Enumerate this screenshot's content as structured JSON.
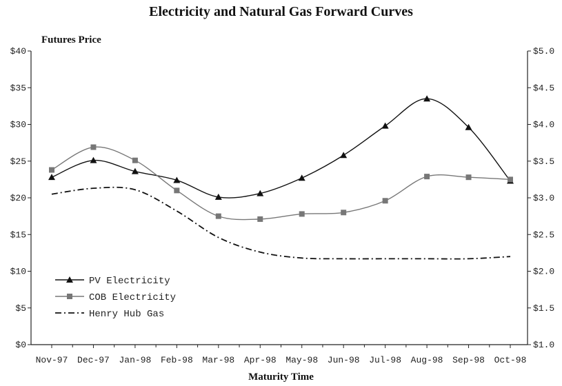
{
  "chart_data": {
    "type": "line",
    "title": "Electricity and Natural Gas Forward Curves",
    "ylabel": "Futures Price",
    "xlabel": "Maturity Time",
    "categories": [
      "Nov-97",
      "Dec-97",
      "Jan-98",
      "Feb-98",
      "Mar-98",
      "Apr-98",
      "May-98",
      "Jun-98",
      "Jul-98",
      "Aug-98",
      "Sep-98",
      "Oct-98"
    ],
    "ylim": [
      0,
      40
    ],
    "yticks": [
      "$0",
      "$5",
      "$10",
      "$15",
      "$20",
      "$25",
      "$30",
      "$35",
      "$40"
    ],
    "y2lim": [
      1.0,
      5.0
    ],
    "y2ticks": [
      "$1.0",
      "$1.5",
      "$2.0",
      "$2.5",
      "$3.0",
      "$3.5",
      "$4.0",
      "$4.5",
      "$5.0"
    ],
    "grid": false,
    "legend_position": "bottom-left",
    "series": [
      {
        "name": "PV Electricity",
        "axis": "left",
        "marker": "triangle",
        "color": "#111111",
        "values": [
          22.8,
          25.1,
          23.6,
          22.4,
          20.1,
          20.6,
          22.7,
          25.8,
          29.8,
          33.5,
          29.6,
          22.3
        ]
      },
      {
        "name": "COB Electricity",
        "axis": "left",
        "marker": "square",
        "color": "#777777",
        "values": [
          23.8,
          26.9,
          25.1,
          21.0,
          17.5,
          17.1,
          17.8,
          18.0,
          19.6,
          22.9,
          22.8,
          22.5
        ]
      },
      {
        "name": "Henry Hub Gas",
        "axis": "right",
        "marker": "none",
        "dash": "dashdot",
        "color": "#111111",
        "values": [
          3.05,
          3.13,
          3.11,
          2.82,
          2.46,
          2.26,
          2.18,
          2.17,
          2.17,
          2.17,
          2.17,
          2.2
        ]
      }
    ]
  }
}
